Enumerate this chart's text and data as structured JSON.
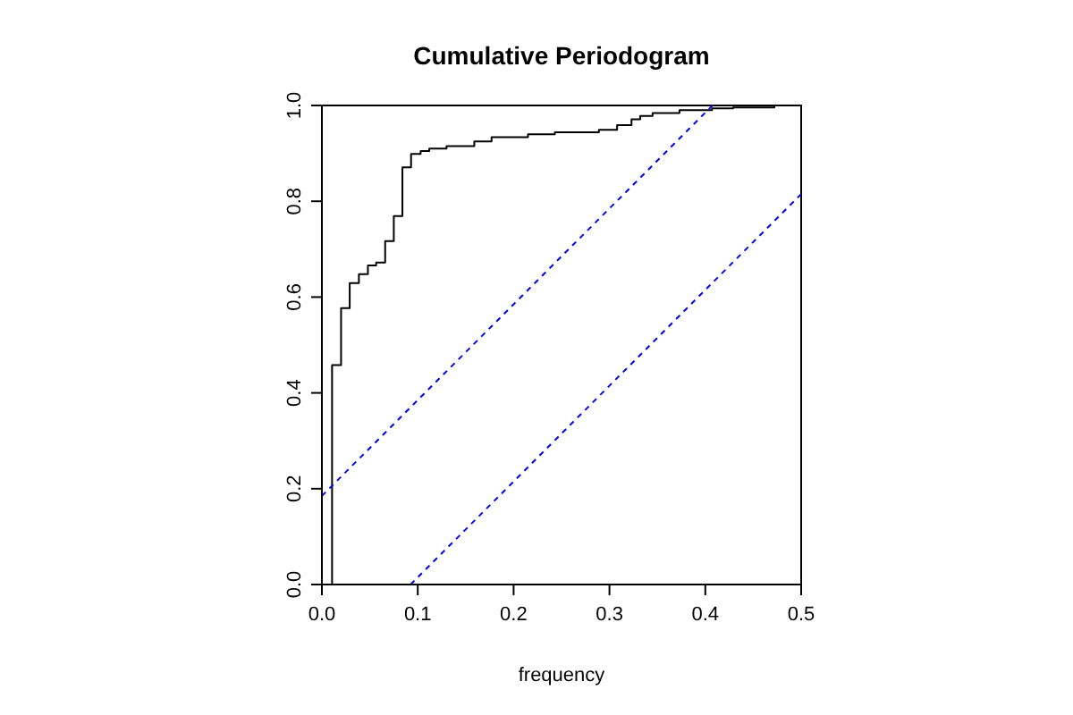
{
  "chart_data": {
    "type": "step",
    "title": "Cumulative Periodogram",
    "xlabel": "frequency",
    "xlim": [
      0,
      0.5
    ],
    "ylim": [
      0,
      1
    ],
    "xticks": [
      {
        "value": 0,
        "label": "0.0"
      },
      0.1,
      0.2,
      0.3,
      0.4,
      0.5
    ],
    "yticks": [
      {
        "value": 0,
        "label": "0.0"
      },
      0.2,
      0.4,
      0.6,
      0.8,
      {
        "value": 1,
        "label": "1.0"
      }
    ],
    "grid": false,
    "series": [
      {
        "color": "#000000",
        "x": [
          0.0106,
          0.0106,
          0.02,
          0.029,
          0.0386,
          0.048,
          0.0566,
          0.066,
          0.075,
          0.084,
          0.093,
          0.103,
          0.112,
          0.13,
          0.159,
          0.177,
          0.215,
          0.243,
          0.289,
          0.308,
          0.323,
          0.332,
          0.345,
          0.373,
          0.407,
          0.429,
          0.472,
          0.5
        ],
        "values": [
          0,
          0.458,
          0.577,
          0.629,
          0.648,
          0.666,
          0.672,
          0.717,
          0.769,
          0.871,
          0.899,
          0.905,
          0.91,
          0.915,
          0.925,
          0.934,
          0.94,
          0.944,
          0.949,
          0.959,
          0.971,
          0.978,
          0.984,
          0.99,
          0.994,
          0.996,
          1.0,
          1.0
        ]
      },
      {
        "type": "line",
        "color": "#0000ff",
        "line_style": "dashed",
        "x": [
          0,
          0.4075
        ],
        "values": [
          0.185,
          1.0
        ]
      },
      {
        "type": "line",
        "color": "#0000ff",
        "line_style": "dashed",
        "x": [
          0.0925,
          0.5
        ],
        "values": [
          0,
          0.815
        ]
      }
    ]
  }
}
